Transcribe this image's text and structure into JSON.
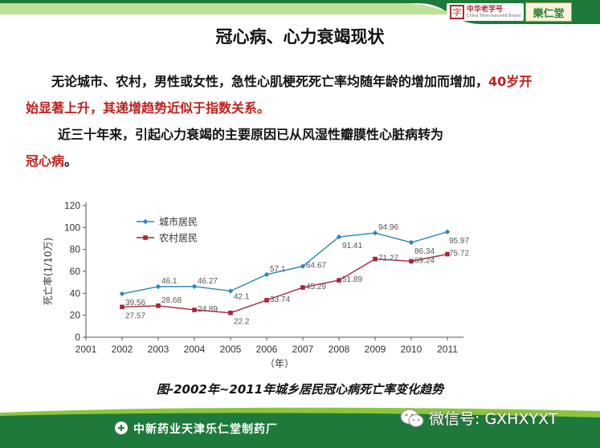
{
  "header": {
    "logo1_cn": "中华老字号",
    "logo1_en": "China Time-honored Brand",
    "logo1_seal": "字",
    "logo2": "樂仁堂"
  },
  "title": "冠心病、心力衰竭现状",
  "paragraph1": {
    "part1": "无论城市、农村，男性或女性，急性心肌梗死死亡率均随年龄的增加而增加，",
    "highlight": "40岁开始显著上升，其递增趋势近似于指数关系。"
  },
  "paragraph2": {
    "part1": "近三十年来，引起心力衰竭的主要原因已从风湿性瓣膜性心脏病转为",
    "highlight": "冠心病",
    "end": "。"
  },
  "chart_data": {
    "type": "line",
    "x": [
      2002,
      2003,
      2004,
      2005,
      2006,
      2007,
      2008,
      2009,
      2010,
      2011
    ],
    "series": [
      {
        "name": "城市居民",
        "values": [
          39.56,
          46.1,
          46.27,
          42.1,
          57.1,
          64.67,
          91.41,
          94.96,
          86.34,
          95.97
        ],
        "color": "#2a86b5"
      },
      {
        "name": "农村居民",
        "values": [
          27.57,
          28.68,
          24.89,
          22.2,
          33.74,
          45.29,
          51.89,
          71.27,
          69.24,
          75.72
        ],
        "color": "#a8243a"
      }
    ],
    "value_labels": {
      "城市居民": [
        "39.56",
        "46.1",
        "46.27",
        "42.1",
        "57.1",
        "64.67",
        "91.41",
        "94.96",
        "86.34",
        "95.97"
      ],
      "农村居民": [
        "27.57",
        "28.68",
        "24.89",
        "22.2",
        "33.74",
        "45.29",
        "51.89",
        "71.27",
        "69.24",
        "75.72"
      ]
    },
    "xticks": [
      "2001",
      "2002",
      "2003",
      "2004",
      "2005",
      "2006",
      "2007",
      "2008",
      "2009",
      "2010",
      "2011"
    ],
    "xlim": [
      2001,
      2011
    ],
    "yticks": [
      "0",
      "20",
      "40",
      "60",
      "80",
      "100",
      "120"
    ],
    "ylim": [
      0,
      120
    ],
    "xlabel": "（年）",
    "ylabel": "死亡率(1/10万)",
    "grid": false,
    "legend": "top-left",
    "caption": "图-2002年~2011年城乡居民冠心病死亡率变化趋势"
  },
  "footer": {
    "company": "中新药业天津乐仁堂制药厂",
    "wechat_label": "微信号: GXHXYXT",
    "colors": {
      "green_dark": "#1e7a3a",
      "green_light": "#8cc63f"
    }
  }
}
